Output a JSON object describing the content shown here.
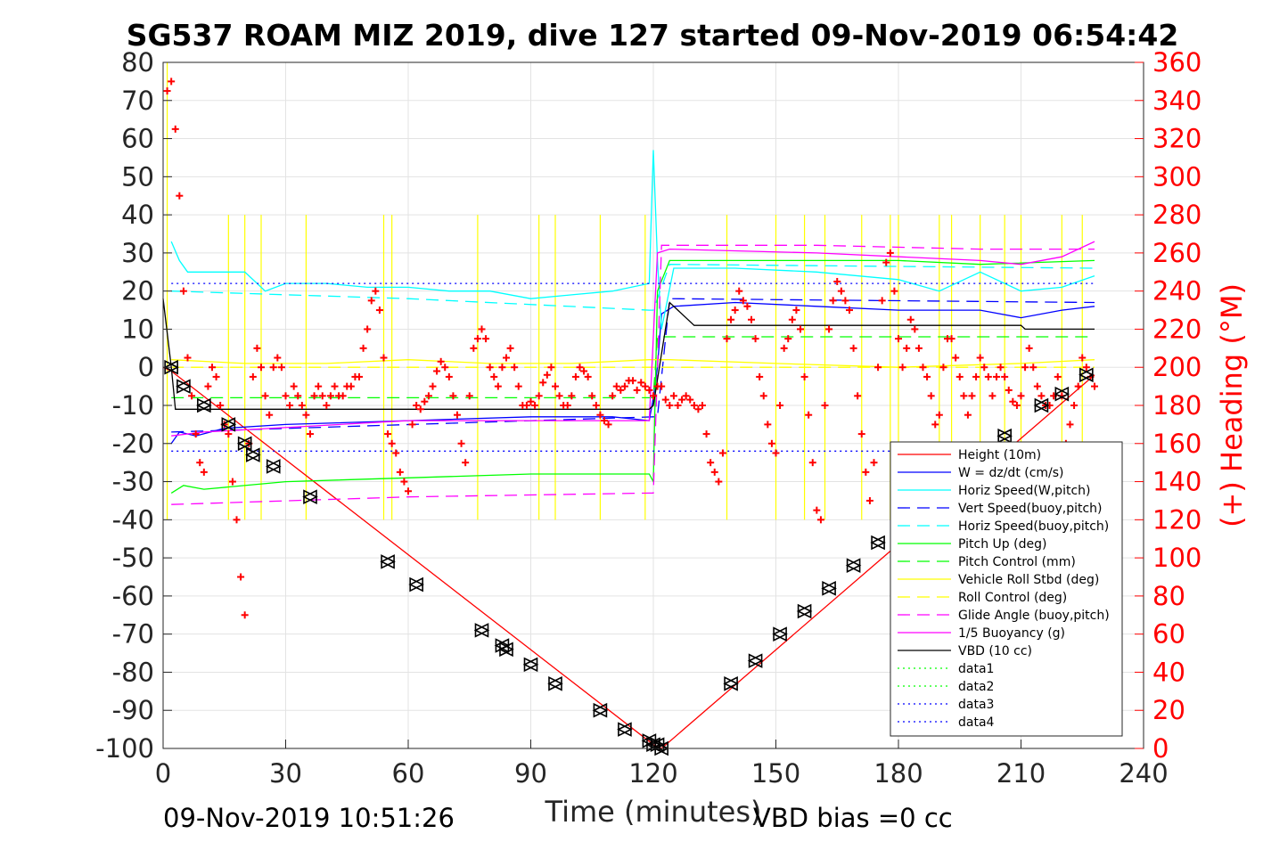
{
  "title": "SG537 ROAM MIZ 2019, dive 127 started 09-Nov-2019 06:54:42",
  "footer_left": "09-Nov-2019 10:51:26",
  "footer_right": "VBD bias =0 cc",
  "chart_data": {
    "type": "line",
    "xlabel": "Time (minutes)",
    "ylabel_right": "(+) Heading (°M)",
    "xlim": [
      0,
      240
    ],
    "ylim_left": [
      -100,
      80
    ],
    "ylim_right": [
      0,
      360
    ],
    "x_ticks": [
      "0",
      "30",
      "60",
      "90",
      "120",
      "150",
      "180",
      "210",
      "240"
    ],
    "y_ticks_left": [
      "80",
      "70",
      "60",
      "50",
      "40",
      "30",
      "20",
      "10",
      "0",
      "-10",
      "-20",
      "-30",
      "-40",
      "-50",
      "-60",
      "-70",
      "-80",
      "-90",
      "-100"
    ],
    "y_ticks_right": [
      "360",
      "340",
      "320",
      "300",
      "280",
      "260",
      "240",
      "220",
      "200",
      "180",
      "160",
      "140",
      "120",
      "100",
      "80",
      "60",
      "40",
      "20",
      "0"
    ],
    "grid": true,
    "legend_position": "bottom-right",
    "legend": [
      {
        "label": "Height (10m)",
        "color": "#ff0000",
        "dash": "solid"
      },
      {
        "label": "W = dz/dt (cm/s)",
        "color": "#0000ff",
        "dash": "solid"
      },
      {
        "label": "Horiz Speed(W,pitch)",
        "color": "#00ffff",
        "dash": "solid"
      },
      {
        "label": "Vert Speed(buoy,pitch)",
        "color": "#0000ff",
        "dash": "dashed"
      },
      {
        "label": "Horiz Speed(buoy,pitch)",
        "color": "#00ffff",
        "dash": "dashed"
      },
      {
        "label": "Pitch Up (deg)",
        "color": "#00ff00",
        "dash": "solid"
      },
      {
        "label": "Pitch Control (mm)",
        "color": "#00ff00",
        "dash": "dashed"
      },
      {
        "label": "Vehicle Roll Stbd (deg)",
        "color": "#ffff00",
        "dash": "solid"
      },
      {
        "label": "Roll Control (deg)",
        "color": "#ffff00",
        "dash": "dashed"
      },
      {
        "label": "Glide Angle (buoy,pitch)",
        "color": "#ff00ff",
        "dash": "dashed"
      },
      {
        "label": "1/5 Buoyancy (g)",
        "color": "#ff00ff",
        "dash": "solid"
      },
      {
        "label": "VBD (10 cc)",
        "color": "#000000",
        "dash": "solid"
      },
      {
        "label": "data1",
        "color": "#00ff00",
        "dash": "dotted"
      },
      {
        "label": "data2",
        "color": "#00ff00",
        "dash": "dotted"
      },
      {
        "label": "data3",
        "color": "#0000ff",
        "dash": "dotted"
      },
      {
        "label": "data4",
        "color": "#0000ff",
        "dash": "dotted"
      }
    ],
    "series": [
      {
        "name": "Height (10m)",
        "color": "#ff0000",
        "dash": "solid",
        "x": [
          0,
          2,
          120,
          122,
          228
        ],
        "y": [
          0,
          -1,
          -99,
          -100,
          -2
        ]
      },
      {
        "name": "W = dz/dt (cm/s)",
        "color": "#0000ff",
        "dash": "solid",
        "x": [
          2,
          4,
          8,
          15,
          30,
          60,
          90,
          110,
          119,
          120,
          121,
          122,
          125,
          140,
          160,
          180,
          200,
          210,
          220,
          228
        ],
        "y": [
          -20,
          -17,
          -18,
          -16,
          -15,
          -14,
          -13,
          -13,
          -14,
          -8,
          0,
          14,
          16,
          17,
          16,
          15,
          15,
          13,
          15,
          16
        ]
      },
      {
        "name": "Horiz Speed(W,pitch)",
        "color": "#00ffff",
        "dash": "solid",
        "x": [
          2,
          4,
          6,
          10,
          20,
          25,
          30,
          40,
          50,
          60,
          70,
          80,
          90,
          100,
          110,
          119,
          120,
          121,
          122,
          125,
          140,
          160,
          180,
          190,
          200,
          210,
          220,
          228
        ],
        "y": [
          33,
          28,
          25,
          25,
          25,
          20,
          22,
          22,
          21,
          21,
          20,
          20,
          18,
          19,
          20,
          22,
          57,
          28,
          10,
          26,
          26,
          25,
          23,
          20,
          25,
          20,
          21,
          24
        ]
      },
      {
        "name": "Vert Speed(buoy,pitch)",
        "color": "#0000ff",
        "dash": "dashed",
        "x": [
          2,
          120,
          121,
          124,
          228
        ],
        "y": [
          -17,
          -13,
          -13,
          18,
          17
        ]
      },
      {
        "name": "Horiz Speed(buoy,pitch)",
        "color": "#00ffff",
        "dash": "dashed",
        "x": [
          2,
          60,
          119,
          120,
          124,
          228
        ],
        "y": [
          20,
          18,
          15,
          15,
          27,
          26
        ]
      },
      {
        "name": "Pitch Up (deg)",
        "color": "#00ff00",
        "dash": "solid",
        "x": [
          2,
          5,
          10,
          30,
          60,
          90,
          119,
          120,
          121,
          124,
          150,
          180,
          200,
          228
        ],
        "y": [
          -33,
          -31,
          -32,
          -30,
          -29,
          -28,
          -28,
          -30,
          20,
          28,
          28,
          28,
          27,
          28
        ]
      },
      {
        "name": "Pitch Control (mm)",
        "color": "#00ff00",
        "dash": "dashed",
        "x": [
          2,
          120,
          121,
          228
        ],
        "y": [
          -8,
          -8,
          8,
          8
        ]
      },
      {
        "name": "Vehicle Roll Stbd (deg)",
        "color": "#ffff00",
        "dash": "solid",
        "x": [
          2,
          20,
          40,
          60,
          80,
          100,
          119,
          124,
          150,
          180,
          210,
          228
        ],
        "y": [
          2,
          1,
          1,
          2,
          1,
          1,
          2,
          2,
          1,
          0,
          1,
          2
        ]
      },
      {
        "name": "Roll Control (deg)",
        "color": "#ffff00",
        "dash": "dashed",
        "x": [
          2,
          228
        ],
        "y": [
          0,
          0
        ]
      },
      {
        "name": "Glide Angle (buoy,pitch)",
        "color": "#ff00ff",
        "dash": "dashed",
        "x": [
          2,
          60,
          119,
          120,
          122,
          160,
          200,
          228
        ],
        "y": [
          -36,
          -34,
          -33,
          -33,
          32,
          32,
          31,
          31
        ]
      },
      {
        "name": "1/5 Buoyancy (g)",
        "color": "#ff00ff",
        "dash": "solid",
        "x": [
          2,
          10,
          60,
          119,
          121,
          124,
          160,
          200,
          210,
          220,
          228
        ],
        "y": [
          -18,
          -17,
          -14,
          -14,
          30,
          31,
          30,
          28,
          27,
          29,
          33
        ]
      },
      {
        "name": "VBD (10 cc)",
        "color": "#000000",
        "dash": "solid",
        "x": [
          0,
          2,
          3,
          119,
          120,
          124,
          130,
          210,
          211,
          228
        ],
        "y": [
          18,
          0,
          -11,
          -11,
          -10,
          17,
          11,
          11,
          10,
          10
        ]
      },
      {
        "name": "data1",
        "color": "#00ff00",
        "dash": "dotted",
        "x": [],
        "y": []
      },
      {
        "name": "data2",
        "color": "#00ff00",
        "dash": "dotted",
        "x": [],
        "y": []
      },
      {
        "name": "data3",
        "color": "#0000ff",
        "dash": "dotted",
        "x": [
          2,
          228
        ],
        "y": [
          22,
          22
        ]
      },
      {
        "name": "data4",
        "color": "#0000ff",
        "dash": "dotted",
        "x": [
          2,
          228
        ],
        "y": [
          -22,
          -22
        ]
      }
    ],
    "roll_spikes": {
      "color": "#ffff00",
      "x": [
        1,
        16,
        20,
        24,
        35,
        54,
        56,
        77,
        92,
        96,
        107,
        118,
        138,
        150,
        157,
        162,
        171,
        178,
        180,
        190,
        193,
        200,
        206,
        210,
        220,
        225
      ],
      "y_top": [
        80,
        40,
        40,
        40,
        40,
        40,
        40,
        40,
        40,
        40,
        40,
        40,
        40,
        40,
        40,
        40,
        40,
        40,
        40,
        40,
        40,
        40,
        40,
        40,
        40,
        40
      ],
      "y_bottom": [
        -40,
        -40,
        -40,
        -40,
        -40,
        -40,
        -40,
        -40,
        -40,
        -40,
        -40,
        -40,
        -40,
        -40,
        -40,
        -40,
        -40,
        -40,
        -40,
        -40,
        -40,
        -40,
        -40,
        -40,
        -40,
        -40
      ]
    },
    "heading": {
      "name": "(+) Heading (°M)",
      "color": "#ff0000",
      "marker": "+",
      "x": [
        1,
        2,
        3,
        4,
        5,
        6,
        7,
        8,
        9,
        10,
        11,
        12,
        13,
        14,
        15,
        16,
        17,
        18,
        19,
        20,
        21,
        22,
        23,
        24,
        25,
        26,
        27,
        28,
        29,
        30,
        31,
        32,
        33,
        34,
        35,
        36,
        37,
        38,
        39,
        40,
        41,
        42,
        43,
        44,
        45,
        46,
        47,
        48,
        49,
        50,
        51,
        52,
        53,
        54,
        55,
        56,
        57,
        58,
        59,
        60,
        61,
        62,
        63,
        64,
        65,
        66,
        67,
        68,
        69,
        70,
        71,
        72,
        73,
        74,
        75,
        76,
        77,
        78,
        79,
        80,
        81,
        82,
        83,
        84,
        85,
        86,
        87,
        88,
        89,
        90,
        91,
        92,
        93,
        94,
        95,
        96,
        97,
        98,
        99,
        100,
        101,
        102,
        103,
        104,
        105,
        106,
        107,
        108,
        109,
        110,
        111,
        112,
        113,
        114,
        115,
        116,
        117,
        118,
        119,
        120,
        121,
        122,
        123,
        124,
        125,
        126,
        127,
        128,
        129,
        130,
        131,
        132,
        133,
        134,
        135,
        136,
        137,
        138,
        139,
        140,
        141,
        142,
        143,
        144,
        145,
        146,
        147,
        148,
        149,
        150,
        151,
        152,
        153,
        154,
        155,
        156,
        157,
        158,
        159,
        160,
        161,
        162,
        163,
        164,
        165,
        166,
        167,
        168,
        169,
        170,
        171,
        172,
        173,
        174,
        175,
        176,
        177,
        178,
        179,
        180,
        181,
        182,
        183,
        184,
        185,
        186,
        187,
        188,
        189,
        190,
        191,
        192,
        193,
        194,
        195,
        196,
        197,
        198,
        199,
        200,
        201,
        202,
        203,
        204,
        205,
        206,
        207,
        208,
        209,
        210,
        211,
        212,
        213,
        214,
        215,
        216,
        217,
        218,
        219,
        220,
        221,
        222,
        223,
        224,
        225,
        226,
        227,
        228
      ],
      "y": [
        345,
        350,
        325,
        290,
        240,
        205,
        185,
        165,
        150,
        145,
        190,
        200,
        195,
        180,
        170,
        165,
        140,
        120,
        90,
        70,
        160,
        195,
        210,
        200,
        185,
        175,
        200,
        205,
        200,
        185,
        180,
        190,
        185,
        180,
        175,
        165,
        185,
        190,
        185,
        180,
        185,
        190,
        185,
        185,
        190,
        190,
        195,
        195,
        210,
        220,
        235,
        240,
        230,
        205,
        165,
        160,
        155,
        145,
        140,
        135,
        170,
        180,
        178,
        182,
        185,
        190,
        198,
        203,
        200,
        195,
        185,
        175,
        160,
        150,
        185,
        210,
        215,
        220,
        215,
        200,
        195,
        190,
        200,
        205,
        210,
        200,
        190,
        180,
        180,
        182,
        180,
        185,
        192,
        196,
        200,
        190,
        185,
        180,
        180,
        185,
        195,
        200,
        198,
        195,
        185,
        180,
        175,
        172,
        170,
        185,
        190,
        188,
        190,
        193,
        193,
        188,
        192,
        190,
        188,
        185,
        190,
        190,
        183,
        180,
        185,
        180,
        183,
        185,
        183,
        180,
        178,
        180,
        165,
        150,
        145,
        140,
        155,
        215,
        225,
        230,
        240,
        235,
        232,
        225,
        215,
        195,
        185,
        170,
        160,
        155,
        180,
        210,
        215,
        225,
        230,
        220,
        195,
        175,
        150,
        125,
        120,
        180,
        220,
        235,
        245,
        240,
        235,
        230,
        210,
        185,
        165,
        145,
        130,
        150,
        200,
        235,
        255,
        260,
        240,
        215,
        200,
        210,
        225,
        220,
        210,
        200,
        195,
        185,
        170,
        175,
        200,
        215,
        215,
        205,
        195,
        185,
        175,
        185,
        195,
        205,
        200,
        195,
        185,
        195,
        200,
        195,
        188,
        182,
        180,
        185,
        200,
        210,
        200,
        190,
        185,
        180,
        180,
        185,
        195,
        185,
        160,
        170,
        180,
        190,
        205,
        200,
        195,
        190
      ]
    },
    "depth_markers": {
      "color": "#000000",
      "x": [
        2,
        5,
        10,
        16,
        20,
        22,
        27,
        36,
        55,
        62,
        78,
        83,
        84,
        90,
        96,
        107,
        113,
        119,
        120,
        121,
        122,
        139,
        145,
        151,
        157,
        163,
        169,
        175,
        206,
        215,
        220,
        226
      ],
      "y": [
        0,
        -5,
        -10,
        -15,
        -20,
        -23,
        -26,
        -34,
        -51,
        -57,
        -69,
        -73,
        -74,
        -78,
        -83,
        -90,
        -95,
        -98,
        -99,
        -99,
        -100,
        -83,
        -77,
        -70,
        -64,
        -58,
        -52,
        -46,
        -18,
        -10,
        -7,
        -2
      ]
    }
  }
}
